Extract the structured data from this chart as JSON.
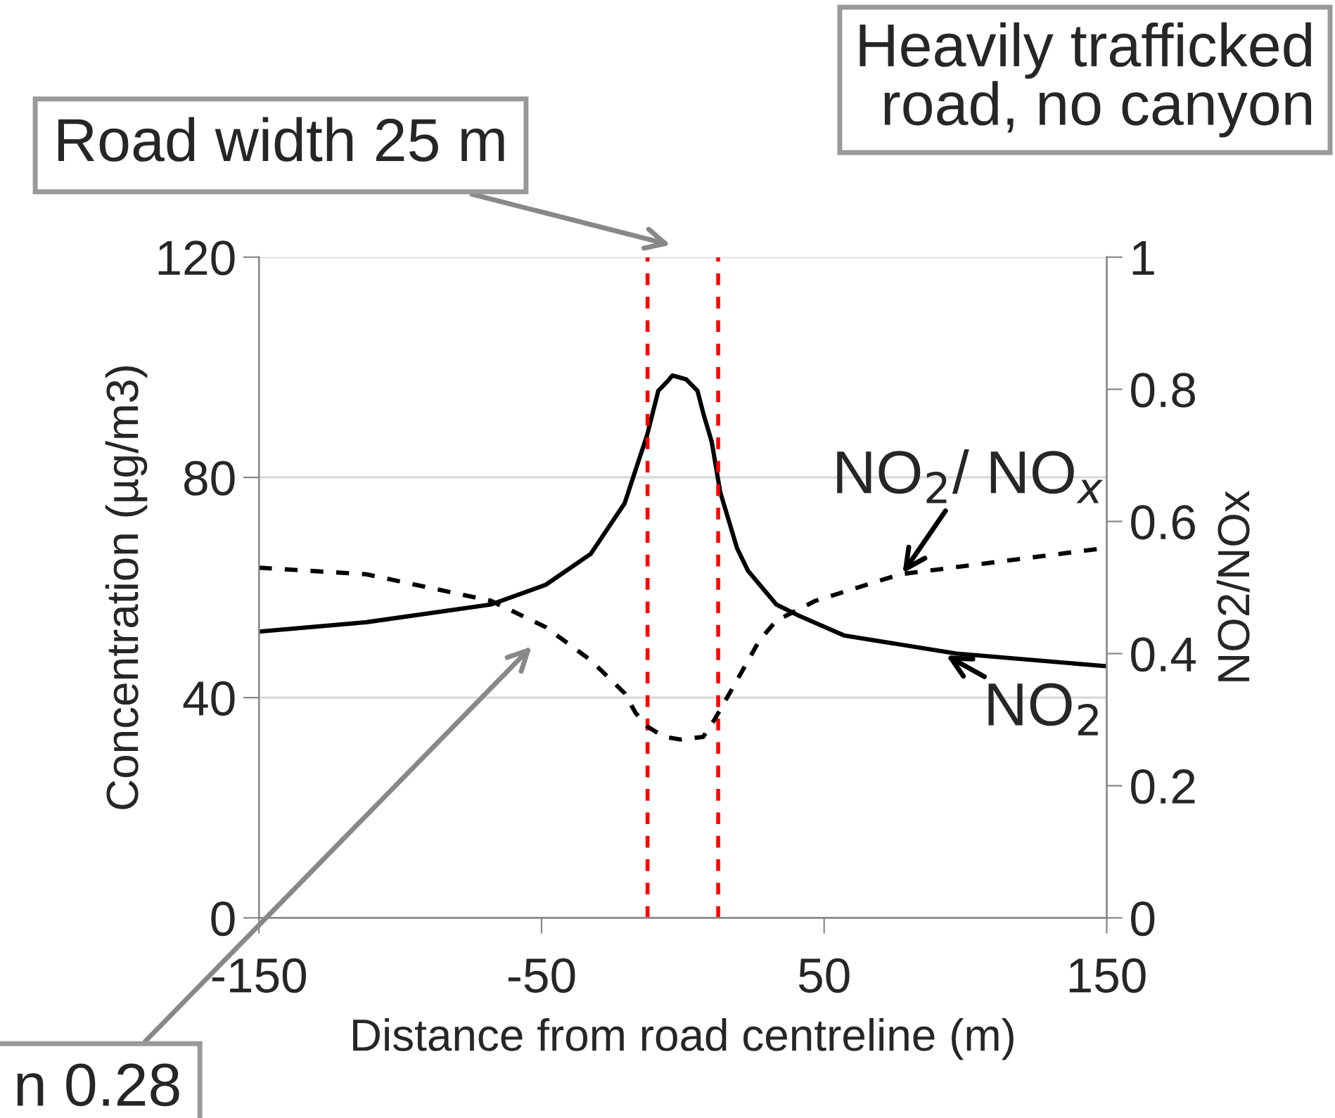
{
  "chart_data": {
    "type": "line",
    "title": "Heavily trafficked\nroad, no canyon",
    "xlabel": "Distance from road centreline (m)",
    "ylabel": "Concentration (µg/m3)",
    "y2label": "NO2/NOx",
    "series": [
      {
        "color": "#000000",
        "line_style": "solid",
        "x": [
          -150,
          -112,
          -68,
          -48.5,
          -32.6,
          -20.6,
          -16.7,
          -12.7,
          -8.7,
          -5.7,
          -3.7,
          1.2,
          5.2,
          7.2,
          10.2,
          13.2,
          19.2,
          23.1,
          33.1,
          41,
          57,
          96.8,
          150
        ],
        "values": [
          52,
          53.7,
          56.9,
          60.5,
          66.1,
          75.3,
          81.4,
          87.6,
          95.7,
          97.3,
          98.5,
          97.8,
          95.7,
          91.7,
          86.5,
          77.4,
          67.1,
          63,
          56.9,
          54.9,
          51.3,
          48,
          45.7
        ]
      },
      {
        "color": "#000000",
        "line_style": "dashed",
        "axis": "y2",
        "x": [
          -150,
          -112,
          -68,
          -48.5,
          -32.6,
          -20.6,
          -16.7,
          -12.7,
          -6.7,
          -0.7,
          7.2,
          11.2,
          15.2,
          19.2,
          27.1,
          33.1,
          47,
          76.9,
          150
        ],
        "values": [
          0.53,
          0.52,
          0.48,
          0.44,
          0.39,
          0.34,
          0.31,
          0.29,
          0.274,
          0.27,
          0.274,
          0.3,
          0.33,
          0.36,
          0.42,
          0.45,
          0.48,
          0.52,
          0.56
        ]
      }
    ],
    "xlim": [
      -150,
      150
    ],
    "xticks": [
      -150,
      -50,
      50,
      150
    ],
    "ylim": [
      0,
      120
    ],
    "yticks": [
      0,
      40,
      80,
      120
    ],
    "y2lim": [
      0,
      1
    ],
    "y2ticks": [
      0,
      0.2,
      0.4,
      0.6,
      0.8,
      1
    ],
    "grid": "y",
    "legend": false,
    "ref_lines": [
      {
        "axis": "x",
        "value": -12.5,
        "color": "#ff0000",
        "line_style": "dashed"
      },
      {
        "axis": "x",
        "value": 12.5,
        "color": "#ff0000",
        "line_style": "dashed"
      }
    ],
    "annotations": [
      "Road width 25 m",
      {
        "text": "NO$_{2}$/ NO$_{x}$",
        "x": 77,
        "y": 62
      },
      {
        "text": "NO$_{2}$",
        "x": 92,
        "y": 48
      },
      "n 0.28"
    ]
  }
}
